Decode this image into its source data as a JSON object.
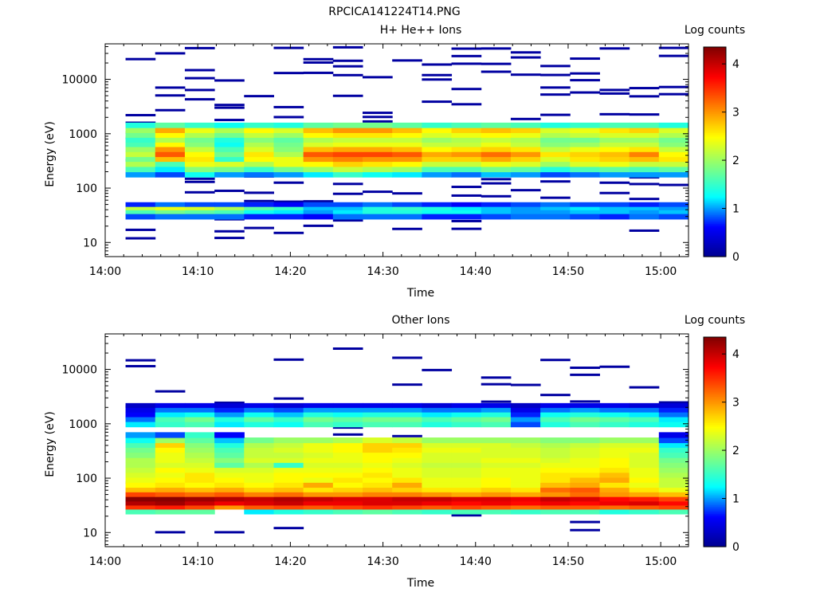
{
  "figure_title": "RPCICA141224T14.PNG",
  "colormap_stops": [
    "#00008f",
    "#0000ff",
    "#00ffff",
    "#80ff80",
    "#ffff00",
    "#ff8000",
    "#ff0000",
    "#800000"
  ],
  "chart_data": [
    {
      "type": "heatmap",
      "title": "H+ He++ Ions",
      "xlabel": "Time",
      "ylabel": "Energy (eV)",
      "colorbar_label": "Log counts",
      "x_ticks": [
        "14:00",
        "14:10",
        "14:20",
        "14:30",
        "14:40",
        "14:50",
        "15:00"
      ],
      "xlim_minutes": [
        0,
        63
      ],
      "y_scale": "log",
      "ylim": [
        5.5,
        45000
      ],
      "y_ticks": [
        "10",
        "100",
        "1000",
        "10000"
      ],
      "y_tick_values": [
        10,
        100,
        1000,
        10000
      ],
      "colorbar_ticks": [
        "0",
        "1",
        "2",
        "3",
        "4"
      ],
      "color_range": [
        0,
        4.35
      ],
      "time_bins_minutes": [
        2.2,
        5.4,
        8.6,
        11.8,
        15.0,
        18.2,
        21.4,
        24.6,
        27.8,
        31.0,
        34.2,
        37.4,
        40.6,
        43.8,
        47.0,
        50.2,
        53.4,
        56.6,
        59.8,
        63.0
      ],
      "bands": [
        {
          "e_lo": 27,
          "e_hi": 34,
          "values": [
            0.8,
            0.9,
            0.9,
            0.9,
            0.7,
            0.7,
            0.6,
            0.9,
            0.9,
            0.9,
            0.7,
            0.7,
            0.8,
            0.9,
            0.9,
            0.8,
            0.7,
            0.9,
            0.8
          ]
        },
        {
          "e_lo": 34,
          "e_hi": 40,
          "values": [
            1.6,
            1.8,
            1.7,
            1.6,
            1.3,
            1.2,
            1.0,
            1.2,
            1.4,
            1.4,
            1.3,
            1.3,
            1.1,
            1.0,
            1.0,
            1.1,
            1.1,
            1.0,
            1.1
          ]
        },
        {
          "e_lo": 40,
          "e_hi": 46,
          "values": [
            2.2,
            2.4,
            2.3,
            2.1,
            1.7,
            1.5,
            1.1,
            1.1,
            1.4,
            1.5,
            1.4,
            1.2,
            1.1,
            1.0,
            1.1,
            1.2,
            1.1,
            1.1,
            1.0
          ]
        },
        {
          "e_lo": 46,
          "e_hi": 55,
          "values": [
            0.7,
            0.9,
            0.8,
            0.8,
            0.7,
            0.6,
            0.8,
            0.8,
            0.9,
            0.8,
            0.7,
            0.6,
            0.7,
            0.8,
            0.9,
            0.8,
            0.8,
            0.7,
            0.8
          ]
        },
        {
          "e_lo": 160,
          "e_hi": 200,
          "values": [
            1.0,
            0.8,
            1.3,
            1.0,
            0.9,
            1.0,
            1.2,
            1.5,
            1.3,
            1.2,
            1.0,
            0.9,
            1.1,
            1.0,
            0.8,
            0.9,
            1.0,
            1.0,
            1.0
          ]
        },
        {
          "e_lo": 200,
          "e_hi": 250,
          "values": [
            1.6,
            1.2,
            1.9,
            1.8,
            1.5,
            1.8,
            2.0,
            2.2,
            2.1,
            2.0,
            1.6,
            1.6,
            1.8,
            1.7,
            1.4,
            1.6,
            1.7,
            1.6,
            1.7
          ]
        },
        {
          "e_lo": 250,
          "e_hi": 310,
          "values": [
            2.1,
            1.6,
            2.4,
            2.3,
            2.1,
            2.4,
            2.5,
            2.7,
            2.6,
            2.5,
            2.2,
            2.2,
            2.4,
            2.3,
            2.0,
            2.3,
            2.4,
            2.2,
            2.2
          ]
        },
        {
          "e_lo": 310,
          "e_hi": 380,
          "values": [
            1.8,
            2.8,
            2.6,
            1.5,
            2.5,
            2.4,
            3.0,
            3.1,
            3.0,
            3.0,
            2.7,
            2.7,
            2.9,
            2.7,
            2.3,
            2.6,
            2.7,
            2.8,
            2.6
          ]
        },
        {
          "e_lo": 380,
          "e_hi": 470,
          "values": [
            2.2,
            3.3,
            2.5,
            1.8,
            2.6,
            2.1,
            3.3,
            3.4,
            3.4,
            3.3,
            2.9,
            3.0,
            3.2,
            3.0,
            2.6,
            2.7,
            2.8,
            3.1,
            2.5
          ]
        },
        {
          "e_lo": 470,
          "e_hi": 580,
          "values": [
            2.0,
            3.0,
            2.2,
            1.6,
            2.3,
            1.9,
            2.8,
            2.9,
            2.9,
            2.8,
            2.5,
            2.6,
            2.7,
            2.6,
            2.2,
            2.4,
            2.5,
            2.6,
            2.2
          ]
        },
        {
          "e_lo": 580,
          "e_hi": 700,
          "values": [
            1.6,
            2.5,
            1.9,
            1.3,
            2.1,
            1.8,
            2.3,
            2.4,
            2.4,
            2.4,
            2.2,
            2.2,
            2.4,
            2.2,
            1.9,
            2.0,
            2.2,
            2.2,
            1.9
          ]
        },
        {
          "e_lo": 700,
          "e_hi": 860,
          "values": [
            1.5,
            2.1,
            1.8,
            1.4,
            1.9,
            1.7,
            2.1,
            2.2,
            2.2,
            2.2,
            2.0,
            2.1,
            2.2,
            2.1,
            1.8,
            1.8,
            2.0,
            2.0,
            1.8
          ]
        },
        {
          "e_lo": 860,
          "e_hi": 1050,
          "values": [
            1.8,
            2.5,
            2.1,
            1.8,
            2.2,
            2.0,
            2.5,
            2.6,
            2.6,
            2.5,
            2.3,
            2.4,
            2.5,
            2.4,
            2.1,
            2.2,
            2.3,
            2.3,
            2.1
          ]
        },
        {
          "e_lo": 1050,
          "e_hi": 1300,
          "values": [
            2.0,
            2.9,
            2.4,
            2.1,
            2.5,
            2.3,
            2.8,
            3.0,
            3.0,
            2.8,
            2.5,
            2.7,
            2.8,
            2.7,
            2.3,
            2.4,
            2.6,
            2.7,
            2.3
          ]
        },
        {
          "e_lo": 1300,
          "e_hi": 1600,
          "values": [
            1.4,
            1.7,
            1.5,
            1.3,
            1.5,
            1.4,
            1.7,
            1.8,
            1.8,
            1.7,
            1.5,
            1.6,
            1.7,
            1.6,
            1.4,
            1.5,
            1.6,
            1.6,
            1.4
          ]
        }
      ],
      "sparse_value": 0.1,
      "sparse_energy_range": [
        12,
        42000
      ],
      "sparse_seed": 7,
      "sparse_probability": 0.3
    },
    {
      "type": "heatmap",
      "title": "Other Ions",
      "xlabel": "Time",
      "ylabel": "Energy (eV)",
      "colorbar_label": "Log counts",
      "x_ticks": [
        "14:00",
        "14:10",
        "14:20",
        "14:30",
        "14:40",
        "14:50",
        "15:00"
      ],
      "xlim_minutes": [
        0,
        63
      ],
      "y_scale": "log",
      "ylim": [
        5.5,
        45000
      ],
      "y_ticks": [
        "10",
        "100",
        "1000",
        "10000"
      ],
      "y_tick_values": [
        10,
        100,
        1000,
        10000
      ],
      "colorbar_ticks": [
        "0",
        "1",
        "2",
        "3",
        "4"
      ],
      "color_range": [
        0,
        4.35
      ],
      "time_bins_minutes": [
        2.2,
        5.4,
        8.6,
        11.8,
        15.0,
        18.2,
        21.4,
        24.6,
        27.8,
        31.0,
        34.2,
        37.4,
        40.6,
        43.8,
        47.0,
        50.2,
        53.4,
        56.6,
        59.8,
        63.0
      ],
      "bands": [
        {
          "e_lo": 22,
          "e_hi": 27,
          "values": [
            1.6,
            1.7,
            1.7,
            0,
            1.2,
            1.4,
            1.5,
            1.6,
            1.7,
            1.6,
            1.5,
            1.6,
            1.6,
            1.5,
            1.6,
            1.6,
            1.4,
            1.5,
            1.6
          ]
        },
        {
          "e_lo": 27,
          "e_hi": 32,
          "values": [
            3.5,
            3.6,
            3.4,
            3.0,
            3.3,
            3.4,
            3.3,
            3.4,
            3.5,
            3.4,
            3.3,
            3.4,
            3.3,
            3.2,
            3.3,
            3.3,
            3.2,
            3.3,
            3.4
          ]
        },
        {
          "e_lo": 32,
          "e_hi": 38,
          "values": [
            4.1,
            4.2,
            4.0,
            3.8,
            3.9,
            4.0,
            3.8,
            3.8,
            3.9,
            3.9,
            3.8,
            3.7,
            3.8,
            3.7,
            3.8,
            3.7,
            3.8,
            3.9,
            3.7
          ]
        },
        {
          "e_lo": 38,
          "e_hi": 46,
          "values": [
            4.3,
            4.3,
            4.2,
            4.1,
            4.0,
            4.1,
            4.0,
            3.9,
            3.9,
            4.0,
            4.0,
            3.9,
            3.9,
            3.8,
            4.0,
            3.9,
            3.7,
            3.6,
            3.4
          ]
        },
        {
          "e_lo": 46,
          "e_hi": 56,
          "values": [
            3.4,
            3.3,
            3.2,
            3.3,
            3.1,
            3.2,
            3.0,
            3.0,
            3.1,
            3.1,
            3.0,
            2.9,
            3.0,
            2.9,
            3.0,
            3.2,
            3.0,
            2.9,
            2.8
          ]
        },
        {
          "e_lo": 56,
          "e_hi": 68,
          "values": [
            2.8,
            2.9,
            2.8,
            2.9,
            2.7,
            2.8,
            2.6,
            2.7,
            2.8,
            2.7,
            2.6,
            2.6,
            2.7,
            2.6,
            3.2,
            3.3,
            2.9,
            2.6,
            2.4
          ]
        },
        {
          "e_lo": 68,
          "e_hi": 84,
          "values": [
            2.5,
            2.6,
            2.5,
            2.6,
            2.5,
            2.6,
            2.9,
            2.5,
            2.6,
            2.9,
            2.4,
            2.4,
            2.5,
            2.4,
            2.8,
            2.9,
            2.6,
            2.4,
            2.2
          ]
        },
        {
          "e_lo": 84,
          "e_hi": 104,
          "values": [
            2.4,
            2.5,
            2.6,
            2.5,
            2.4,
            2.5,
            2.4,
            2.6,
            2.5,
            2.6,
            2.4,
            2.4,
            2.5,
            2.4,
            2.6,
            2.8,
            2.9,
            2.5,
            2.2
          ]
        },
        {
          "e_lo": 104,
          "e_hi": 128,
          "values": [
            2.3,
            2.4,
            2.6,
            2.4,
            2.4,
            2.5,
            2.5,
            2.5,
            2.6,
            2.4,
            2.3,
            2.3,
            2.4,
            2.4,
            2.6,
            2.6,
            2.8,
            2.4,
            2.1
          ]
        },
        {
          "e_lo": 128,
          "e_hi": 158,
          "values": [
            2.2,
            2.5,
            2.4,
            2.3,
            2.3,
            2.4,
            2.4,
            2.4,
            2.5,
            2.4,
            2.3,
            2.3,
            2.4,
            2.4,
            2.5,
            2.5,
            2.6,
            2.4,
            2.0
          ]
        },
        {
          "e_lo": 158,
          "e_hi": 195,
          "values": [
            2.1,
            2.3,
            2.3,
            1.7,
            2.1,
            1.5,
            2.3,
            2.3,
            2.4,
            2.3,
            2.2,
            2.2,
            2.3,
            2.3,
            2.4,
            2.4,
            2.5,
            2.3,
            1.9
          ]
        },
        {
          "e_lo": 195,
          "e_hi": 240,
          "values": [
            2.1,
            2.4,
            2.2,
            1.9,
            2.3,
            2.3,
            2.4,
            2.4,
            2.5,
            2.4,
            2.3,
            2.3,
            2.4,
            2.4,
            2.3,
            2.4,
            2.5,
            2.3,
            1.8
          ]
        },
        {
          "e_lo": 240,
          "e_hi": 300,
          "values": [
            1.9,
            2.4,
            2.1,
            1.7,
            2.2,
            2.2,
            2.3,
            2.4,
            2.5,
            2.5,
            2.3,
            2.3,
            2.3,
            2.3,
            2.2,
            2.3,
            2.4,
            2.3,
            1.6
          ]
        },
        {
          "e_lo": 300,
          "e_hi": 370,
          "values": [
            1.8,
            2.5,
            2.0,
            1.6,
            2.2,
            2.3,
            2.4,
            2.5,
            2.7,
            2.6,
            2.4,
            2.4,
            2.3,
            2.3,
            2.2,
            2.3,
            2.4,
            2.4,
            1.5
          ]
        },
        {
          "e_lo": 370,
          "e_hi": 450,
          "values": [
            1.6,
            2.7,
            1.9,
            1.4,
            2.1,
            2.2,
            2.4,
            2.5,
            2.7,
            2.7,
            2.3,
            2.3,
            2.3,
            2.2,
            2.1,
            2.2,
            2.3,
            2.3,
            1.2
          ]
        },
        {
          "e_lo": 450,
          "e_hi": 560,
          "values": [
            1.3,
            2.0,
            1.7,
            1.1,
            1.8,
            2.0,
            2.0,
            2.1,
            2.3,
            2.2,
            2.0,
            2.0,
            2.0,
            2.0,
            1.9,
            1.9,
            2.0,
            2.0,
            0.8
          ]
        },
        {
          "e_lo": 560,
          "e_hi": 700,
          "values": [
            1.0,
            0.8,
            1.5,
            0.6,
            0,
            0,
            0,
            0,
            0,
            0,
            0,
            0,
            0,
            0,
            0,
            0,
            0,
            0,
            0.5
          ]
        },
        {
          "e_lo": 880,
          "e_hi": 1100,
          "values": [
            1.2,
            1.5,
            1.6,
            1.2,
            1.4,
            1.3,
            1.6,
            1.5,
            1.6,
            1.6,
            1.4,
            1.5,
            1.6,
            0.8,
            1.4,
            1.6,
            1.5,
            1.4,
            1.3
          ]
        },
        {
          "e_lo": 1100,
          "e_hi": 1350,
          "values": [
            0.9,
            1.6,
            1.8,
            1.4,
            1.7,
            1.5,
            1.8,
            1.7,
            1.8,
            1.8,
            1.6,
            1.7,
            1.8,
            1.0,
            1.6,
            1.8,
            1.7,
            1.6,
            1.2
          ]
        },
        {
          "e_lo": 1350,
          "e_hi": 1650,
          "values": [
            0.6,
            1.2,
            1.3,
            1.0,
            1.3,
            1.1,
            1.4,
            1.3,
            1.4,
            1.4,
            1.2,
            1.3,
            1.4,
            0.7,
            1.3,
            1.4,
            1.3,
            1.2,
            0.9
          ]
        },
        {
          "e_lo": 1650,
          "e_hi": 2000,
          "values": [
            0.5,
            0.9,
            0.9,
            0.7,
            0.9,
            0.8,
            1.0,
            1.0,
            1.0,
            1.0,
            0.9,
            0.9,
            1.0,
            0.5,
            0.9,
            1.0,
            0.9,
            0.9,
            0.7
          ]
        },
        {
          "e_lo": 2000,
          "e_hi": 2400,
          "values": [
            0.3,
            0.5,
            0.5,
            0.4,
            0.5,
            0.4,
            0.5,
            0.5,
            0.5,
            0.5,
            0.4,
            0.5,
            0.5,
            0.3,
            0.5,
            0.5,
            0.5,
            0.4,
            0.4
          ]
        }
      ],
      "sparse_value": 0.1,
      "sparse_energy_range": [
        10,
        27000
      ],
      "sparse_seed": 19,
      "sparse_probability": 0.12
    }
  ]
}
